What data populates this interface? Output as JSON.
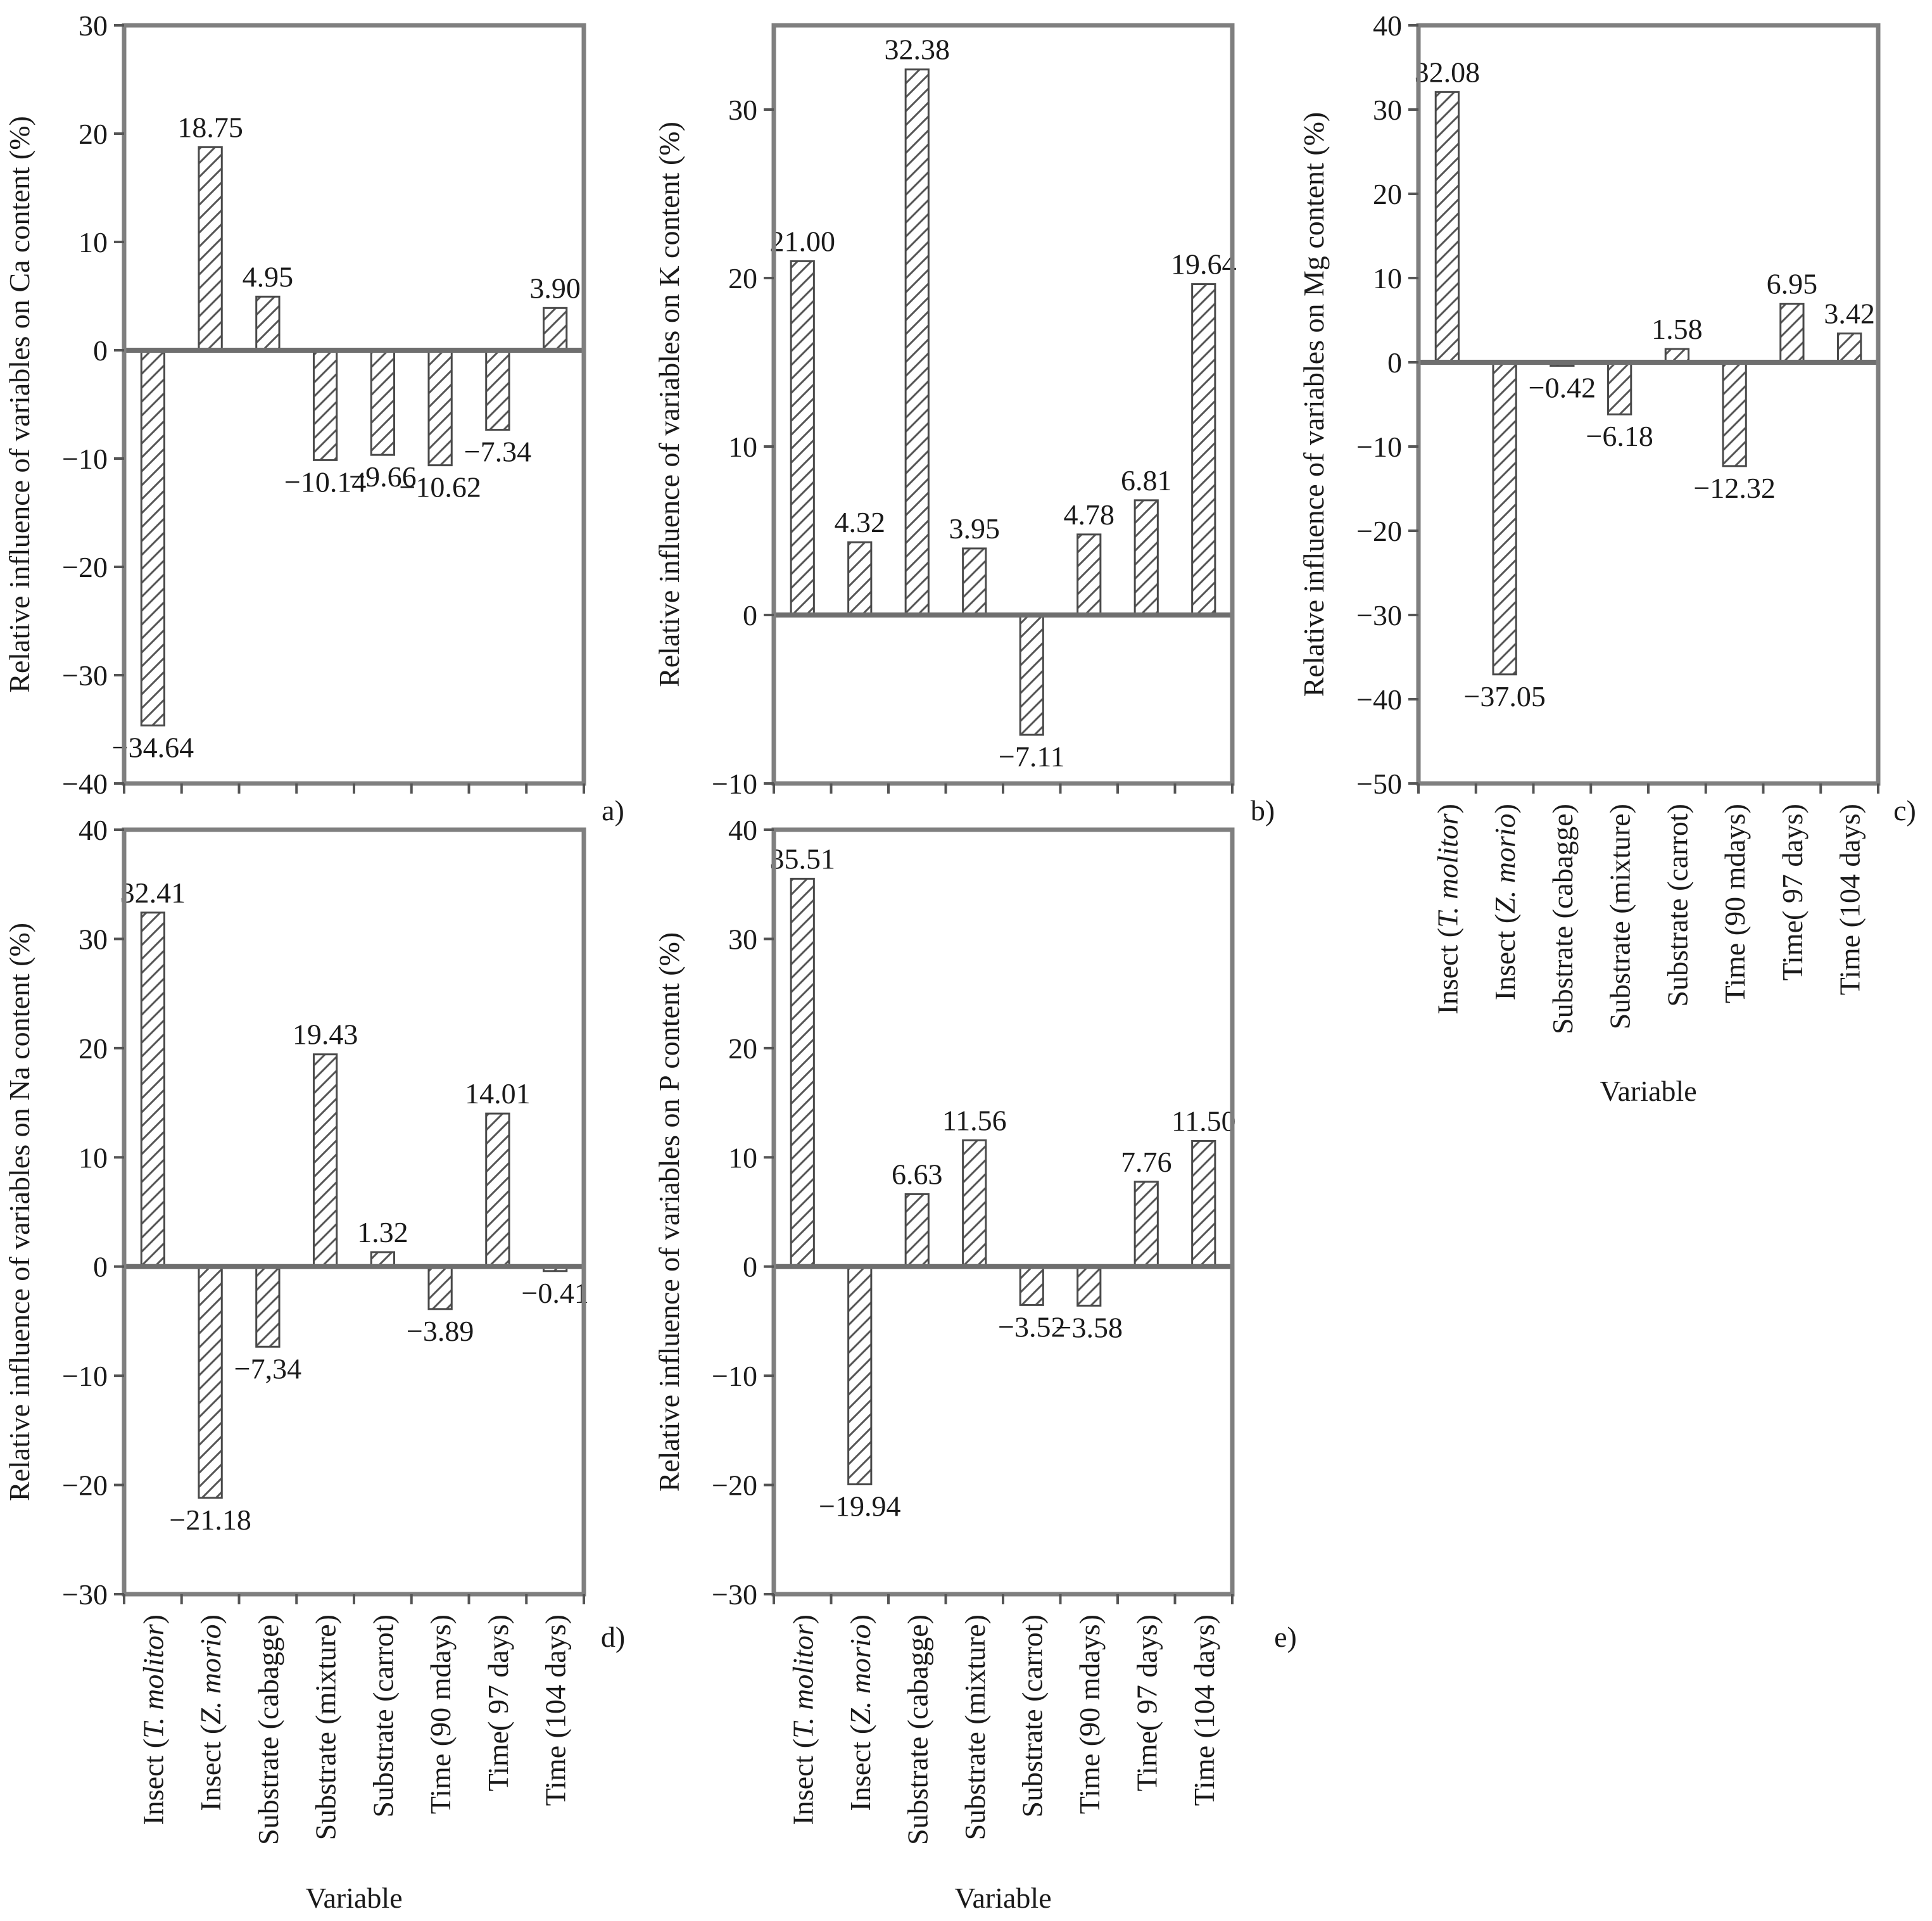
{
  "categories": [
    [
      "Insect  (",
      "T. molitor",
      ")"
    ],
    [
      "Insect (",
      "Z. morio",
      ")"
    ],
    [
      "Substrate (cabagge)"
    ],
    [
      "Substrate (mixture)"
    ],
    [
      "Substrate (carrot)"
    ],
    [
      "Time (90 mdays)"
    ],
    [
      "Time( 97 days)"
    ],
    [
      "Time (104 days)"
    ]
  ],
  "colors": {
    "frame": "#7f7f7f",
    "bar_stroke": "#4a4a4a",
    "hatch": "#555555",
    "zero_line": "#6e6e6e"
  },
  "chart_data": [
    {
      "type": "bar",
      "panel": "a)",
      "ylabel": "Relative influence of variables on Ca content (%)",
      "xlabel": "",
      "ylim": [
        -40,
        30
      ],
      "yticks": [
        -40,
        -30,
        -20,
        -10,
        0,
        10,
        20,
        30
      ],
      "values": [
        -34.64,
        18.75,
        4.95,
        -10.14,
        -9.66,
        -10.62,
        -7.34,
        3.9
      ],
      "data_labels": [
        "−34.64",
        "18.75",
        "4.95",
        "−10.14",
        "−9.66",
        "−10.62",
        "−7.34",
        "3.90"
      ],
      "show_categories": false
    },
    {
      "type": "bar",
      "panel": "b)",
      "ylabel": "Relative influence of variables on K content (%)",
      "xlabel": "",
      "ylim": [
        -10,
        35
      ],
      "yticks": [
        -10,
        0,
        10,
        20,
        30
      ],
      "values": [
        21.0,
        4.32,
        32.38,
        3.95,
        -7.11,
        4.78,
        6.81,
        19.64
      ],
      "data_labels": [
        "21.00",
        "4.32",
        "32.38",
        "3.95",
        "−7.11",
        "4.78",
        "6.81",
        "19.64"
      ],
      "show_categories": false
    },
    {
      "type": "bar",
      "panel": "c)",
      "ylabel": "Relative influence of variables on Mg content (%)",
      "xlabel": "Variable",
      "ylim": [
        -50,
        40
      ],
      "yticks": [
        -50,
        -40,
        -30,
        -20,
        -10,
        0,
        10,
        20,
        30,
        40
      ],
      "values": [
        32.08,
        -37.05,
        -0.42,
        -6.18,
        1.58,
        -12.32,
        6.95,
        3.42
      ],
      "data_labels": [
        "32.08",
        "−37.05",
        "−0.42",
        "−6.18",
        "1.58",
        "−12.32",
        "6.95",
        "3.42"
      ],
      "show_categories": true
    },
    {
      "type": "bar",
      "panel": "d)",
      "ylabel": "Relative influence of variables on Na content (%)",
      "xlabel": "Variable",
      "ylim": [
        -30,
        40
      ],
      "yticks": [
        -30,
        -20,
        -10,
        0,
        10,
        20,
        30,
        40
      ],
      "values": [
        32.41,
        -21.18,
        -7.34,
        19.43,
        1.32,
        -3.89,
        14.01,
        -0.41
      ],
      "data_labels": [
        "32.41",
        "−21.18",
        "−7,34",
        "19.43",
        "1.32",
        "−3.89",
        "14.01",
        "−0.41"
      ],
      "show_categories": true
    },
    {
      "type": "bar",
      "panel": "e)",
      "ylabel": "Relative influence of variables on P content (%)",
      "xlabel": "Variable",
      "ylim": [
        -30,
        40
      ],
      "yticks": [
        -30,
        -20,
        -10,
        0,
        10,
        20,
        30,
        40
      ],
      "values": [
        35.51,
        -19.94,
        6.63,
        11.56,
        -3.52,
        -3.58,
        7.76,
        11.5
      ],
      "data_labels": [
        "35.51",
        "−19.94",
        "6.63",
        "11.56",
        "−3.52",
        "−3.58",
        "7.76",
        "11.50"
      ],
      "show_categories": true
    }
  ]
}
